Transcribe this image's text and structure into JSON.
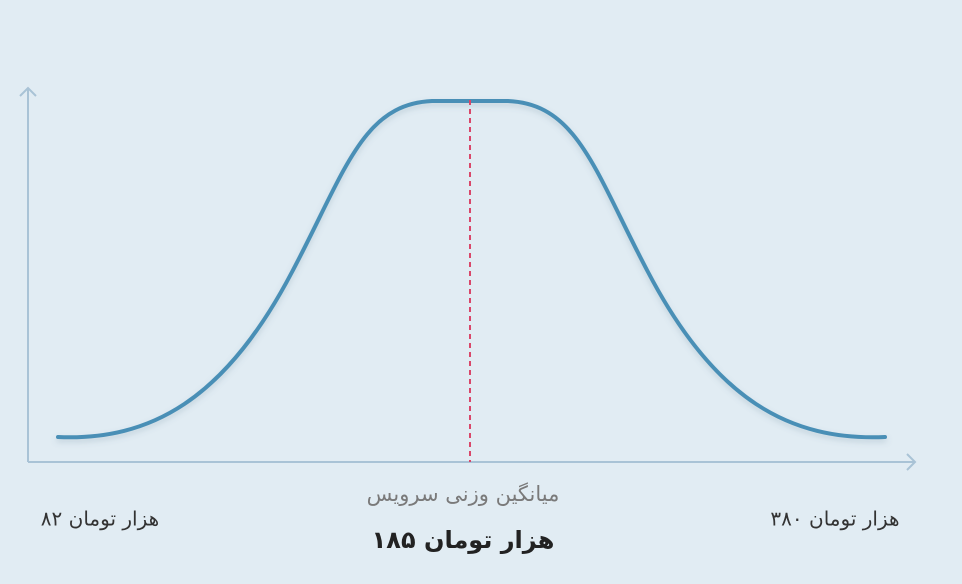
{
  "labels": {
    "mean_caption": "میانگین وزنی سرویس",
    "mean_value": "۱۸۵ هزار تومان",
    "min_value": "۸۲ هزار تومان",
    "max_value": "۳۸۰ هزار تومان"
  }
}
